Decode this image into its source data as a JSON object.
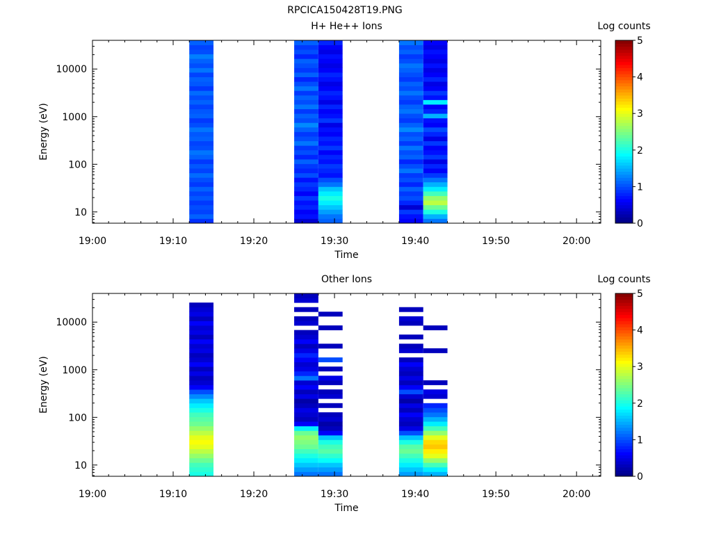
{
  "page": {
    "title": "RPCICA150428T19.PNG"
  },
  "colors": {
    "colormap": "jet",
    "panel_border": "#000000",
    "background": "#ffffff"
  },
  "chart_data": [
    {
      "type": "heatmap",
      "title": "H+ He++ Ions",
      "xlabel": "Time",
      "ylabel": "Energy (eV)",
      "colorbar_label": "Log counts",
      "x_range": [
        "19:00",
        "20:03"
      ],
      "x_ticks": [
        "19:00",
        "19:10",
        "19:20",
        "19:30",
        "19:40",
        "19:50",
        "20:00"
      ],
      "y_scale": "log",
      "y_range": [
        5.8,
        40000
      ],
      "y_ticks": [
        "10",
        "100",
        "1000",
        "10000"
      ],
      "c_range": [
        0,
        5
      ],
      "c_ticks": [
        "0",
        "1",
        "2",
        "3",
        "4",
        "5"
      ],
      "blocks": [
        {
          "start": "19:12",
          "end": "19:15",
          "values": [
            0.85,
            1.1,
            0.95,
            1.0,
            0.9,
            1.05,
            0.95,
            1.1,
            0.9,
            1.0,
            1.15,
            0.95,
            1.05,
            0.9,
            1.1,
            1.2,
            1.0,
            0.95,
            1.1,
            1.05,
            1.2,
            1.0,
            0.9,
            1.1,
            1.05,
            0.95,
            1.1,
            1.0,
            1.15,
            0.9,
            1.05,
            1.1,
            0.95,
            1.2,
            1.0,
            1.1,
            1.25,
            1.0,
            0.95,
            1.1
          ]
        },
        {
          "start": "19:25",
          "end": "19:28",
          "values": [
            0.4,
            0.7,
            0.6,
            0.8,
            0.7,
            0.9,
            0.6,
            0.8,
            0.9,
            0.7,
            1.0,
            0.8,
            0.9,
            1.1,
            0.8,
            1.0,
            0.9,
            1.2,
            1.0,
            0.9,
            1.1,
            1.3,
            1.0,
            1.1,
            0.9,
            1.2,
            1.0,
            1.1,
            0.9,
            1.2,
            1.0,
            0.8,
            1.1,
            0.9,
            1.0,
            1.1,
            0.8,
            1.0,
            0.9,
            1.1
          ]
        },
        {
          "start": "19:28",
          "end": "19:31",
          "values": [
            1.1,
            1.2,
            1.4,
            1.6,
            1.8,
            2.0,
            1.8,
            1.6,
            1.2,
            1.0,
            0.7,
            0.8,
            0.9,
            0.7,
            0.8,
            0.6,
            0.9,
            0.7,
            0.8,
            0.6,
            0.7,
            0.5,
            0.9,
            0.7,
            0.6,
            0.8,
            0.5,
            0.7,
            0.8,
            0.6,
            0.5,
            0.7,
            0.8,
            0.6,
            0.5,
            0.6,
            0.7,
            0.5,
            0.6,
            0.8
          ]
        },
        {
          "start": "19:38",
          "end": "19:41",
          "values": [
            0.6,
            0.7,
            0.9,
            0.4,
            0.8,
            1.0,
            0.9,
            1.1,
            0.8,
            1.0,
            0.9,
            1.2,
            1.0,
            0.8,
            1.1,
            1.0,
            1.2,
            0.9,
            1.1,
            1.0,
            1.3,
            1.1,
            0.9,
            1.0,
            1.2,
            1.1,
            0.9,
            1.0,
            1.2,
            1.0,
            1.1,
            0.9,
            1.0,
            1.1,
            1.2,
            1.0,
            0.9,
            1.1,
            1.0,
            1.2
          ]
        },
        {
          "start": "19:41",
          "end": "19:44",
          "values": [
            1.2,
            1.5,
            2.0,
            2.4,
            2.8,
            2.6,
            2.2,
            1.8,
            1.5,
            1.2,
            0.9,
            0.6,
            0.8,
            0.5,
            0.9,
            0.7,
            0.6,
            0.9,
            0.5,
            0.8,
            1.0,
            0.6,
            0.7,
            1.5,
            0.8,
            0.6,
            1.8,
            0.7,
            0.9,
            0.6,
            0.5,
            0.8,
            0.6,
            0.5,
            0.7,
            0.5,
            0.6,
            0.7,
            0.5,
            0.6
          ]
        }
      ]
    },
    {
      "type": "heatmap",
      "title": "Other Ions",
      "xlabel": "Time",
      "ylabel": "Energy (eV)",
      "colorbar_label": "Log counts",
      "x_range": [
        "19:00",
        "20:03"
      ],
      "x_ticks": [
        "19:00",
        "19:10",
        "19:20",
        "19:30",
        "19:40",
        "19:50",
        "20:00"
      ],
      "y_scale": "log",
      "y_range": [
        5.8,
        40000
      ],
      "y_ticks": [
        "10",
        "100",
        "1000",
        "10000"
      ],
      "c_range": [
        0,
        5
      ],
      "c_ticks": [
        "0",
        "1",
        "2",
        "3",
        "4",
        "5"
      ],
      "blocks": [
        {
          "start": "19:12",
          "end": "19:15",
          "values": [
            2.0,
            2.1,
            2.2,
            2.4,
            2.6,
            2.8,
            3.0,
            3.1,
            3.0,
            2.8,
            2.6,
            2.4,
            2.3,
            2.2,
            2.0,
            1.8,
            1.6,
            1.3,
            1.0,
            0.6,
            0.4,
            0.3,
            0.5,
            0.3,
            0.6,
            0.4,
            0.3,
            0.5,
            0.4,
            0.6,
            0.3,
            0.5,
            0.4,
            0.6,
            0.3,
            0.5,
            0.4,
            0.3,
            null,
            null
          ]
        },
        {
          "start": "19:25",
          "end": "19:28",
          "values": [
            1.2,
            1.4,
            1.6,
            1.8,
            2.0,
            2.2,
            2.4,
            2.5,
            2.6,
            2.4,
            1.8,
            0.6,
            0.3,
            0.4,
            0.5,
            0.3,
            0.2,
            0.5,
            0.3,
            0.6,
            0.4,
            1.2,
            0.8,
            0.5,
            0.4,
            0.6,
            0.8,
            0.5,
            0.3,
            0.6,
            0.4,
            0.3,
            null,
            0.4,
            0.3,
            null,
            0.3,
            null,
            0.4,
            0.3
          ]
        },
        {
          "start": "19:28",
          "end": "19:31",
          "values": [
            1.2,
            1.4,
            1.6,
            1.9,
            2.1,
            2.3,
            2.2,
            2.0,
            1.6,
            0.6,
            0.3,
            0.2,
            0.4,
            0.3,
            null,
            0.3,
            null,
            0.4,
            0.3,
            null,
            0.3,
            0.5,
            null,
            0.3,
            null,
            1.0,
            null,
            null,
            0.3,
            null,
            null,
            null,
            0.3,
            null,
            null,
            0.3,
            null,
            null,
            null,
            null
          ]
        },
        {
          "start": "19:38",
          "end": "19:41",
          "values": [
            1.4,
            1.6,
            1.8,
            2.0,
            2.2,
            2.4,
            2.3,
            2.0,
            1.6,
            1.0,
            0.5,
            0.3,
            0.4,
            0.6,
            0.3,
            0.5,
            0.2,
            0.4,
            1.0,
            0.6,
            0.3,
            0.5,
            0.3,
            0.4,
            0.6,
            0.3,
            null,
            0.4,
            0.3,
            null,
            0.3,
            null,
            null,
            0.3,
            0.4,
            null,
            0.3,
            null,
            null,
            null
          ]
        },
        {
          "start": "19:41",
          "end": "19:44",
          "values": [
            1.5,
            1.8,
            2.2,
            2.6,
            3.0,
            3.2,
            3.4,
            3.3,
            3.0,
            2.6,
            2.2,
            1.8,
            1.5,
            1.2,
            1.0,
            0.8,
            null,
            0.4,
            0.5,
            null,
            0.3,
            null,
            null,
            null,
            null,
            null,
            null,
            0.3,
            null,
            null,
            null,
            null,
            0.3,
            null,
            null,
            null,
            null,
            null,
            null,
            null
          ]
        }
      ]
    }
  ]
}
